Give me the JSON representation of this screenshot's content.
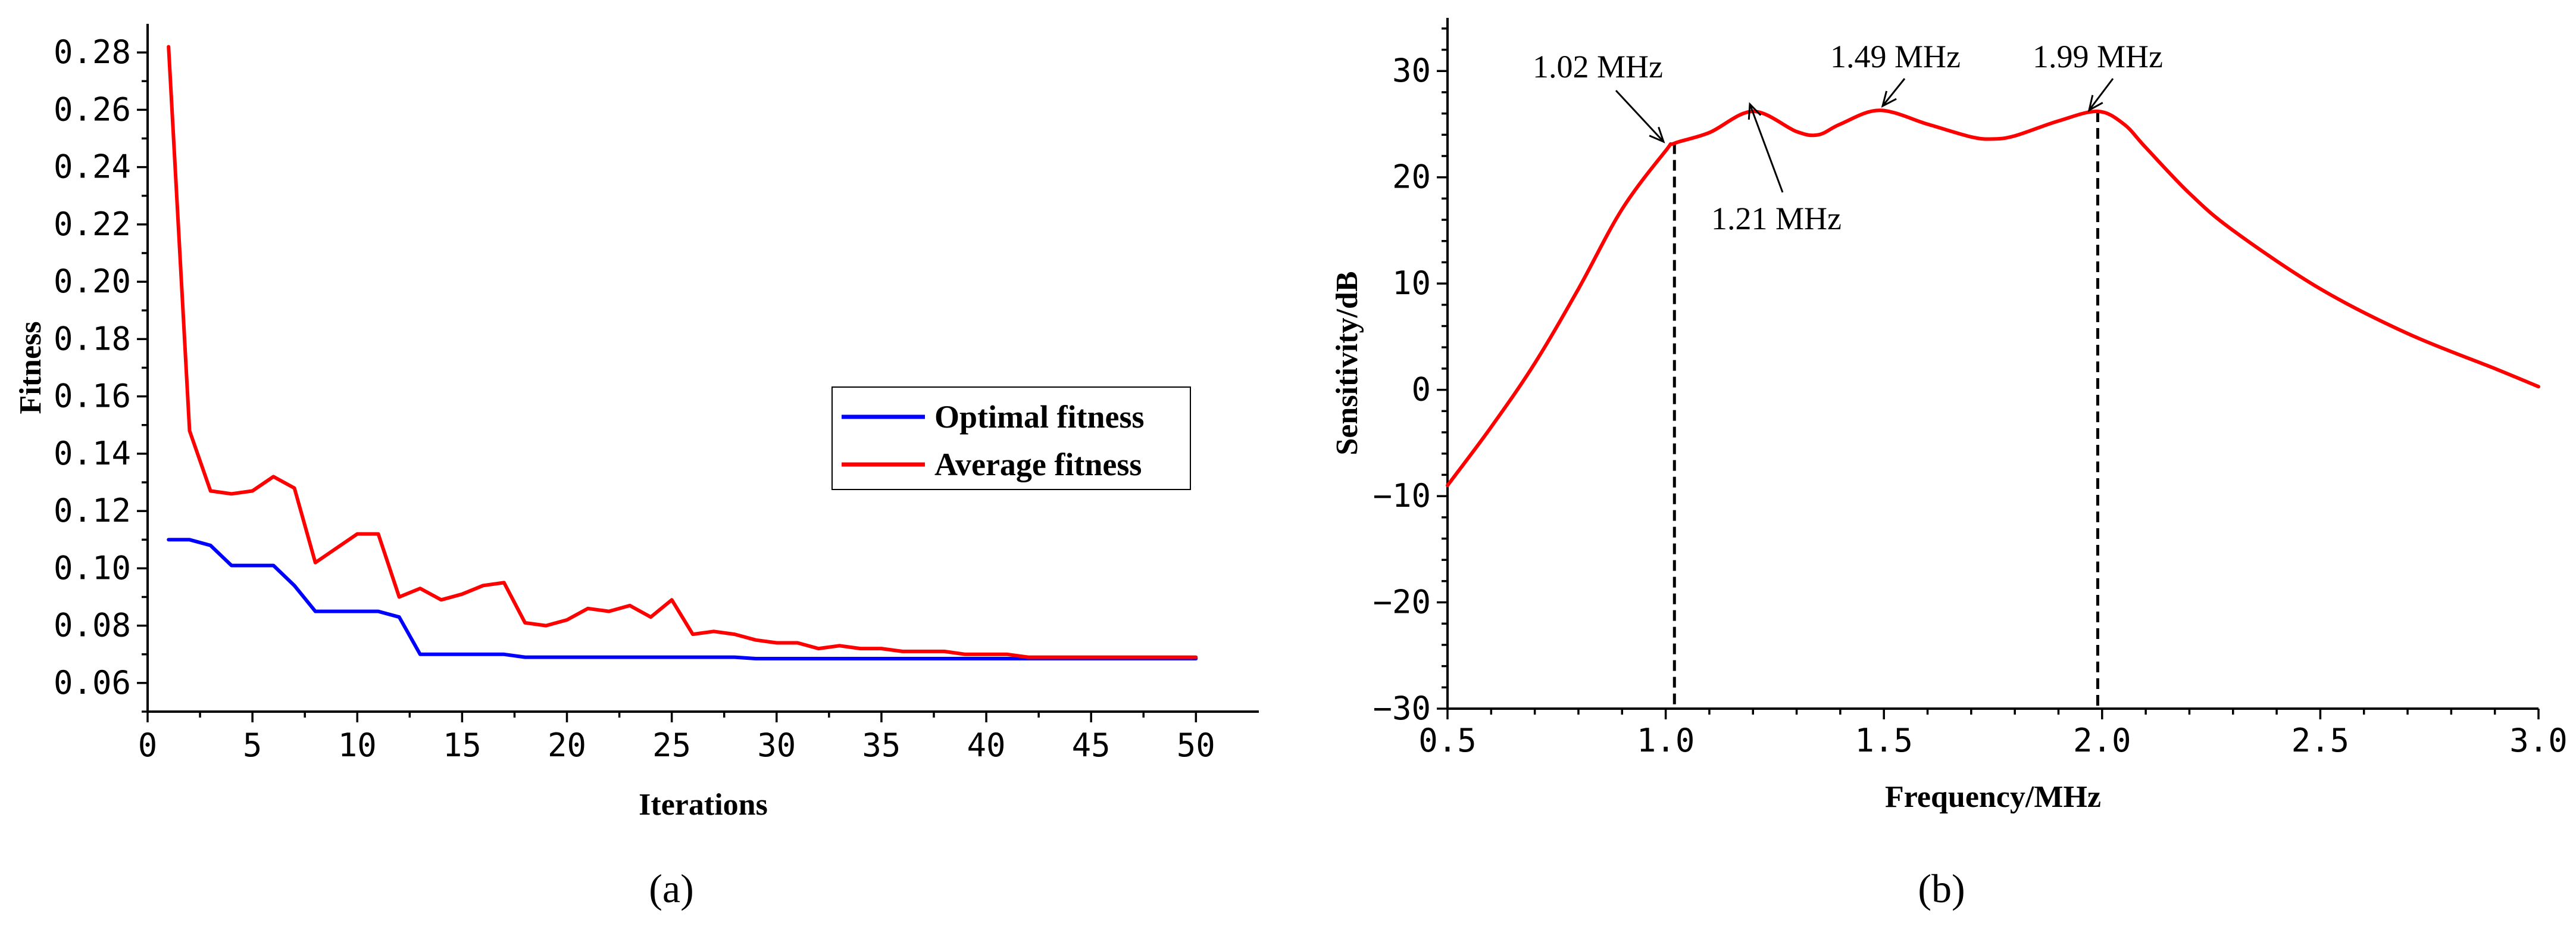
{
  "chart_data": [
    {
      "panel": "a",
      "type": "line",
      "xlabel": "Iterations",
      "ylabel": "Fitness",
      "xlim": [
        0,
        53
      ],
      "ylim": [
        0.05,
        0.29
      ],
      "xticks": [
        0,
        5,
        10,
        15,
        20,
        25,
        30,
        35,
        40,
        45,
        50
      ],
      "yticks": [
        0.06,
        0.08,
        0.1,
        0.12,
        0.14,
        0.16,
        0.18,
        0.2,
        0.22,
        0.24,
        0.26,
        0.28
      ],
      "ytick_labels": [
        "0.06",
        "0.08",
        "0.10",
        "0.12",
        "0.14",
        "0.16",
        "0.18",
        "0.20",
        "0.22",
        "0.24",
        "0.26",
        "0.28"
      ],
      "legend_position": "center-right",
      "series": [
        {
          "name": "Optimal fitness",
          "color": "#0000ff",
          "x": [
            1,
            2,
            3,
            4,
            5,
            6,
            7,
            8,
            9,
            10,
            11,
            12,
            13,
            14,
            15,
            16,
            17,
            18,
            19,
            20,
            21,
            22,
            23,
            24,
            25,
            26,
            27,
            28,
            29,
            30,
            31,
            32,
            33,
            34,
            35,
            36,
            37,
            38,
            39,
            40,
            41,
            42,
            43,
            44,
            45,
            46,
            47,
            48,
            49,
            50
          ],
          "values": [
            0.11,
            0.11,
            0.108,
            0.101,
            0.101,
            0.101,
            0.094,
            0.085,
            0.085,
            0.085,
            0.085,
            0.083,
            0.07,
            0.07,
            0.07,
            0.07,
            0.07,
            0.069,
            0.069,
            0.069,
            0.069,
            0.069,
            0.069,
            0.069,
            0.069,
            0.069,
            0.069,
            0.069,
            0.0685,
            0.0685,
            0.0685,
            0.0685,
            0.0685,
            0.0685,
            0.0685,
            0.0685,
            0.0685,
            0.0685,
            0.0685,
            0.0685,
            0.0685,
            0.0685,
            0.0685,
            0.0685,
            0.0685,
            0.0685,
            0.0685,
            0.0685,
            0.0685,
            0.0685
          ]
        },
        {
          "name": "Average fitness",
          "color": "#ff0000",
          "x": [
            1,
            2,
            3,
            4,
            5,
            6,
            7,
            8,
            9,
            10,
            11,
            12,
            13,
            14,
            15,
            16,
            17,
            18,
            19,
            20,
            21,
            22,
            23,
            24,
            25,
            26,
            27,
            28,
            29,
            30,
            31,
            32,
            33,
            34,
            35,
            36,
            37,
            38,
            39,
            40,
            41,
            42,
            43,
            44,
            45,
            46,
            47,
            48,
            49,
            50
          ],
          "values": [
            0.282,
            0.148,
            0.127,
            0.126,
            0.127,
            0.132,
            0.128,
            0.102,
            0.107,
            0.112,
            0.112,
            0.09,
            0.093,
            0.089,
            0.091,
            0.094,
            0.095,
            0.081,
            0.08,
            0.082,
            0.086,
            0.085,
            0.087,
            0.083,
            0.089,
            0.077,
            0.078,
            0.077,
            0.075,
            0.074,
            0.074,
            0.072,
            0.073,
            0.072,
            0.072,
            0.071,
            0.071,
            0.071,
            0.07,
            0.07,
            0.07,
            0.069,
            0.069,
            0.069,
            0.069,
            0.069,
            0.069,
            0.069,
            0.069,
            0.069
          ]
        }
      ]
    },
    {
      "panel": "b",
      "type": "line",
      "xlabel": "Frequency/MHz",
      "ylabel": "Sensitivity/dB",
      "xlim": [
        0.5,
        3.0
      ],
      "ylim": [
        -30,
        35
      ],
      "xticks": [
        0.5,
        1.0,
        1.5,
        2.0,
        2.5,
        3.0
      ],
      "xtick_labels": [
        "0.5",
        "1.0",
        "1.5",
        "2.0",
        "2.5",
        "3.0"
      ],
      "yticks": [
        -30,
        -20,
        -10,
        0,
        10,
        20,
        30
      ],
      "ytick_labels": [
        "−30",
        "−20",
        "−10",
        "0",
        "10",
        "20",
        "30"
      ],
      "series": [
        {
          "name": "Sensitivity",
          "color": "#ff0000",
          "x": [
            0.5,
            0.6,
            0.7,
            0.8,
            0.9,
            1.0,
            1.02,
            1.1,
            1.2,
            1.3,
            1.35,
            1.4,
            1.49,
            1.6,
            1.7,
            1.75,
            1.8,
            1.9,
            1.99,
            2.05,
            2.1,
            2.2,
            2.3,
            2.5,
            2.7,
            2.9,
            3.0
          ],
          "values": [
            -9,
            -3.5,
            2.5,
            9.5,
            17,
            22.5,
            23.2,
            24.2,
            26.2,
            24.3,
            24.0,
            25.0,
            26.3,
            25.0,
            23.8,
            23.6,
            23.9,
            25.3,
            26.2,
            25.0,
            22.8,
            18.5,
            15.0,
            9.5,
            5.3,
            2.0,
            0.3
          ]
        }
      ],
      "markers": [
        {
          "label": "1.02 MHz",
          "x": 1.02,
          "y": 23.2
        },
        {
          "label": "1.99 MHz",
          "x": 1.99,
          "y": 26.2
        }
      ],
      "annotations": [
        {
          "label": "1.02 MHz",
          "x": 1.02,
          "y": 23.2
        },
        {
          "label": "1.21 MHz",
          "x": 1.21,
          "y": 26.3
        },
        {
          "label": "1.49 MHz",
          "x": 1.49,
          "y": 26.3
        },
        {
          "label": "1.99 MHz",
          "x": 1.99,
          "y": 26.2
        }
      ]
    }
  ],
  "panel_labels": {
    "a": "(a)",
    "b": "(b)"
  }
}
